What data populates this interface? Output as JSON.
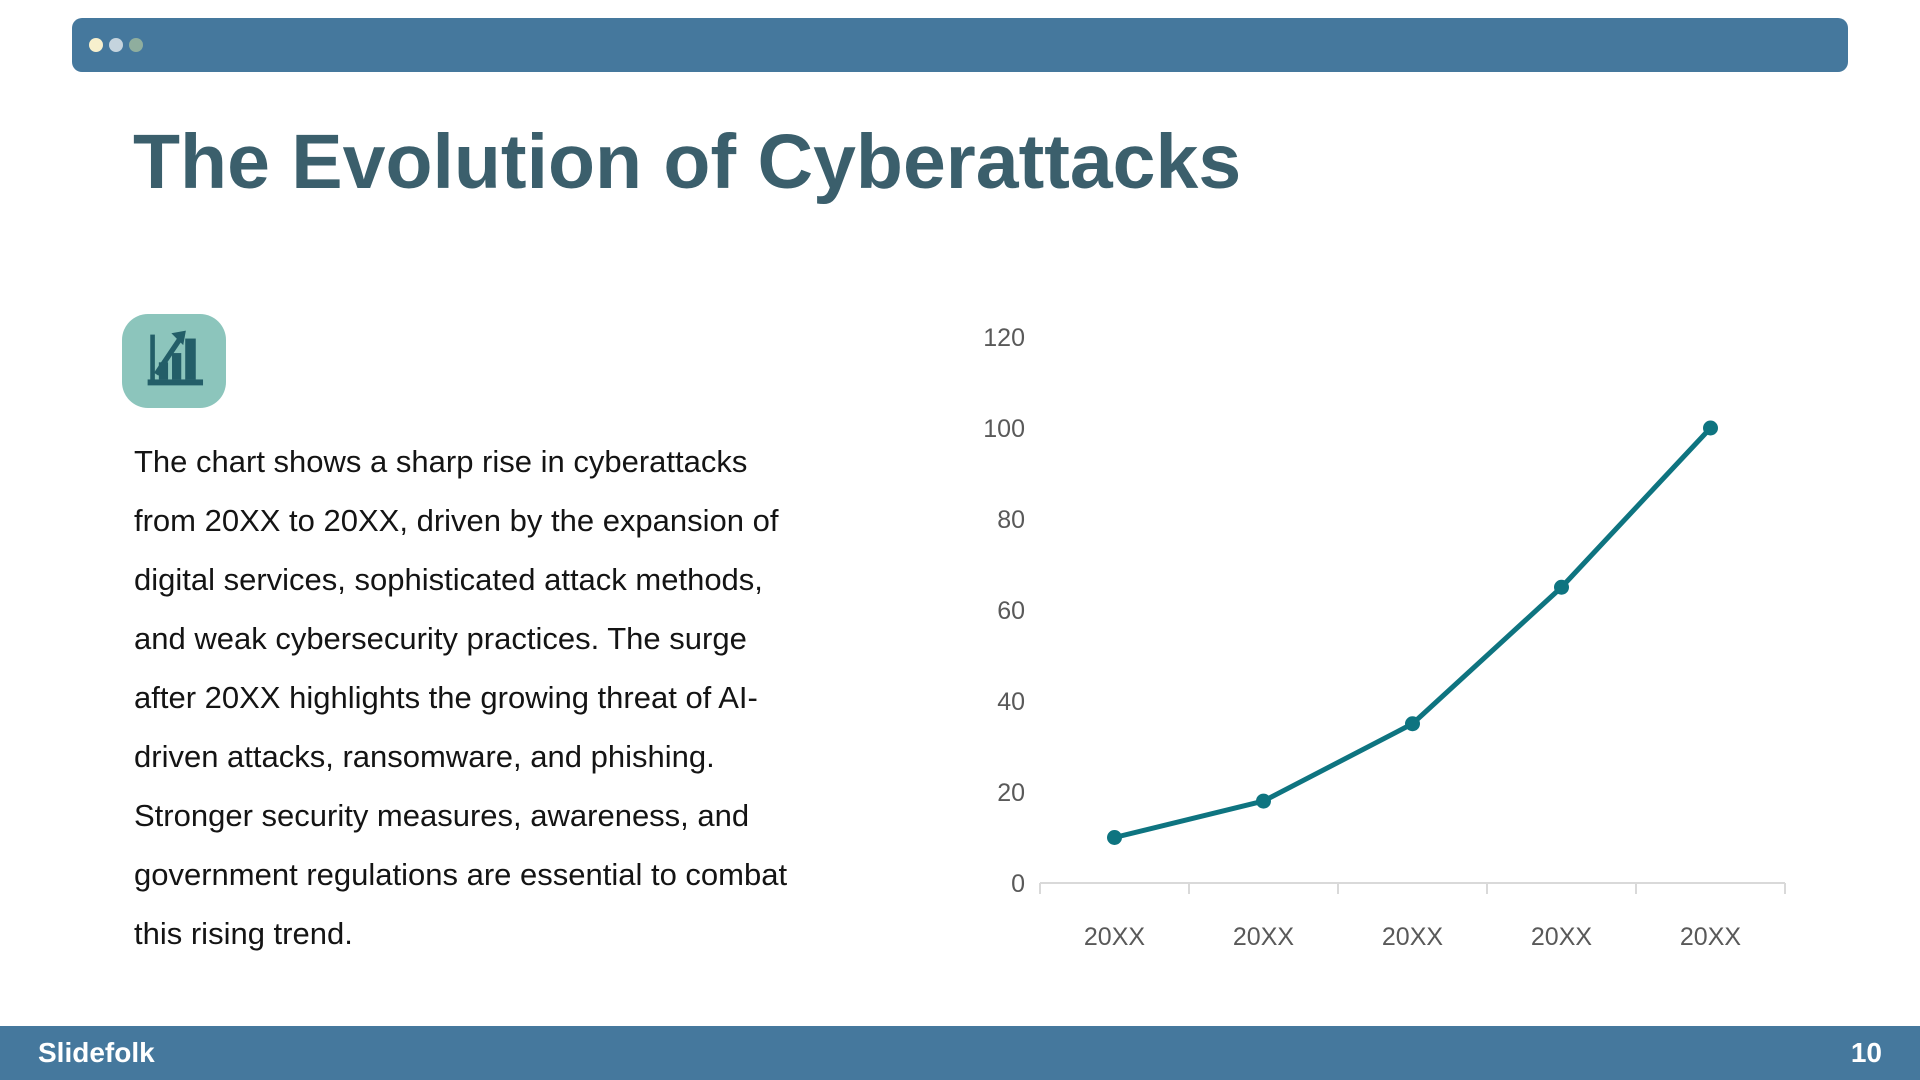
{
  "window": {
    "dot_colors": [
      "#f7f0cd",
      "#c5d4de",
      "#8fae9e"
    ],
    "bar_color": "#45789d"
  },
  "slide": {
    "title": "The Evolution of Cyberattacks",
    "title_color": "#3b5f6c",
    "icon": "bar-chart-rising-icon",
    "icon_bg": "#8cc5bc",
    "icon_glyph_color": "#235e68",
    "body_text": "The chart shows a sharp rise in cyberattacks\nfrom 20XX to 20XX, driven by the expansion of\ndigital services, sophisticated attack methods,\nand weak cybersecurity practices. The surge\nafter 20XX highlights the growing threat of AI-\ndriven attacks, ransomware, and phishing.\nStronger security measures, awareness, and\ngovernment regulations are essential to combat\nthis rising trend."
  },
  "footer": {
    "brand": "Slidefolk",
    "page_number": "10"
  },
  "chart_data": {
    "type": "line",
    "categories": [
      "20XX",
      "20XX",
      "20XX",
      "20XX",
      "20XX"
    ],
    "values": [
      10,
      18,
      35,
      65,
      100
    ],
    "title": "",
    "xlabel": "",
    "ylabel": "",
    "ylim": [
      0,
      120
    ],
    "yticks": [
      0,
      20,
      40,
      60,
      80,
      100,
      120
    ],
    "grid": false,
    "legend": false,
    "line_color": "#0e7480",
    "marker_color": "#0e7480",
    "axis_line_color": "#d9d9d9",
    "tick_label_color": "#595959",
    "markers": true
  }
}
